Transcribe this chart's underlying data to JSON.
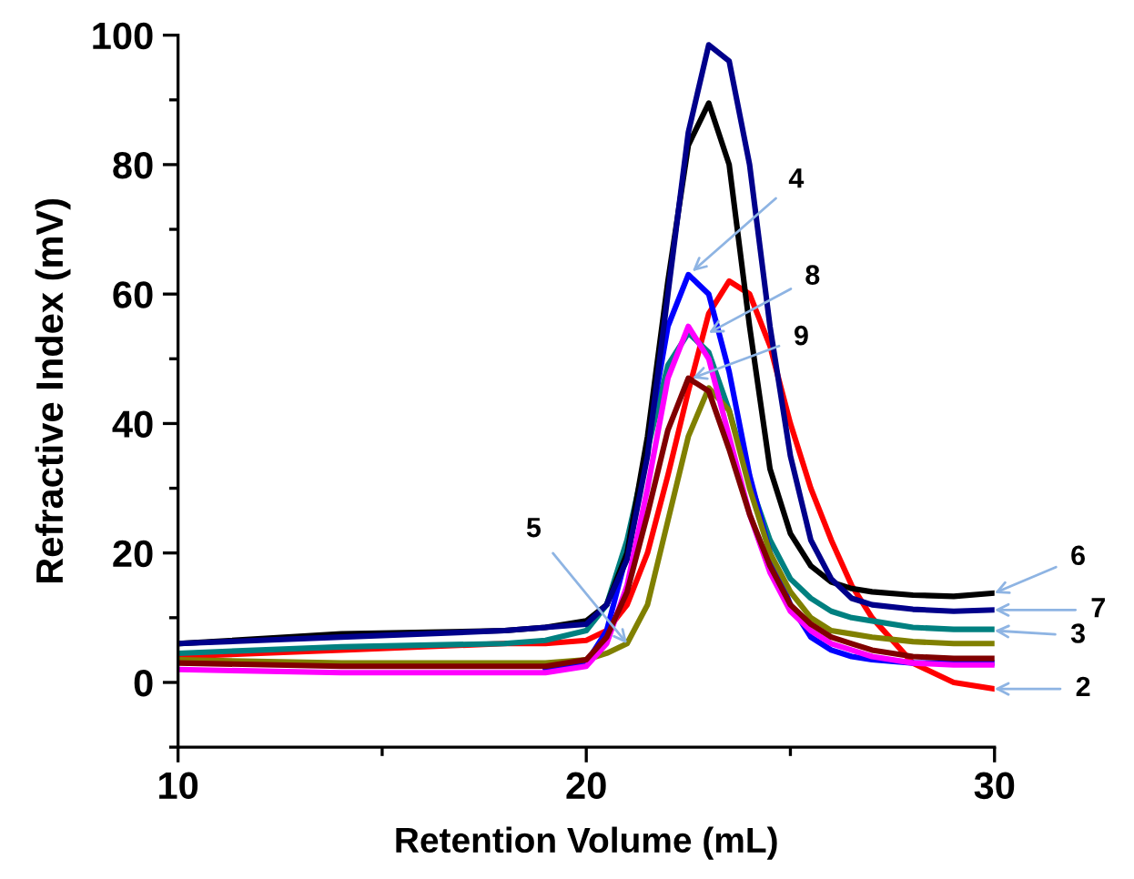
{
  "chart_data": {
    "type": "line",
    "xlabel": "Retention Volume (mL)",
    "ylabel": "Refractive Index (mV)",
    "x": [
      10,
      14,
      18,
      19,
      20,
      20.5,
      21,
      21.5,
      22,
      22.5,
      23,
      23.5,
      24,
      24.5,
      25,
      25.5,
      26,
      26.5,
      27,
      28,
      29,
      30
    ],
    "xlim": [
      10,
      30
    ],
    "ylim": [
      -10,
      100
    ],
    "xticks": [
      10,
      {
        "value": 15,
        "label": null
      },
      20,
      {
        "value": 25,
        "label": null
      },
      30
    ],
    "yticks": [
      {
        "value": -10,
        "label": null
      },
      0,
      {
        "value": 10,
        "label": null
      },
      20,
      {
        "value": 30,
        "label": null
      },
      40,
      {
        "value": 50,
        "label": null
      },
      60,
      {
        "value": 70,
        "label": null
      },
      80,
      {
        "value": 90,
        "label": null
      },
      100
    ],
    "grid": false,
    "legend": false,
    "marker": "none",
    "line_style": "solid",
    "series": [
      {
        "color": "#ff0000",
        "values": [
          4,
          5,
          6,
          6,
          6.5,
          8,
          12,
          20,
          32,
          45,
          57,
          62,
          60,
          52,
          40,
          30,
          22,
          15,
          10,
          3,
          0,
          -1
        ]
      },
      {
        "color": "#008080",
        "values": [
          4.5,
          5.5,
          6,
          6.5,
          8,
          12,
          22,
          36,
          49,
          54,
          51,
          42,
          31,
          22,
          16,
          13,
          11,
          10,
          9.5,
          8.5,
          8.2,
          8.2
        ]
      },
      {
        "color": "#0000ff",
        "values": [
          null,
          null,
          null,
          2,
          3,
          8,
          20,
          37,
          55,
          63,
          60,
          48,
          32,
          20,
          12,
          7,
          5,
          4,
          3.5,
          3,
          3,
          3
        ]
      },
      {
        "color": "#808000",
        "values": [
          3.5,
          3,
          3,
          3,
          3.5,
          4.5,
          6,
          12,
          25,
          38,
          45.5,
          42,
          30,
          20,
          14,
          10,
          8,
          7.5,
          7,
          6.3,
          6,
          6
        ]
      },
      {
        "color": "#000000",
        "values": [
          6,
          7.5,
          8,
          8.5,
          9.5,
          12,
          20,
          38,
          62,
          83,
          89.5,
          80,
          55,
          33,
          23,
          18,
          15.5,
          14.5,
          14,
          13.5,
          13.3,
          13.8
        ]
      },
      {
        "color": "#00008b",
        "values": [
          6,
          7,
          8,
          8.5,
          9,
          12,
          19,
          35,
          60,
          85,
          98.5,
          96,
          80,
          55,
          35,
          22,
          16,
          13,
          12,
          11.3,
          11,
          11.2
        ]
      },
      {
        "color": "#ff00ff",
        "values": [
          2,
          1.5,
          1.5,
          1.5,
          2.5,
          6,
          15,
          30,
          47,
          55,
          50,
          38,
          26,
          17,
          11,
          8,
          6,
          5,
          4,
          3,
          2.7,
          2.7
        ]
      },
      {
        "color": "#800000",
        "values": [
          3,
          2.5,
          2.5,
          2.5,
          3.5,
          7,
          14,
          26,
          39,
          47,
          45,
          36,
          26,
          18,
          12,
          9,
          7,
          6,
          5,
          4,
          3.7,
          3.7
        ]
      }
    ],
    "annotations": [
      {
        "text": "2",
        "x": 30,
        "y": -1
      },
      {
        "text": "3",
        "x": 30,
        "y": 8
      },
      {
        "text": "4",
        "x": 22.6,
        "y": 63.5
      },
      {
        "text": "5",
        "x": 21,
        "y": 6
      },
      {
        "text": "6",
        "x": 30,
        "y": 13.8
      },
      {
        "text": "7",
        "x": 30,
        "y": 11.2
      },
      {
        "text": "8",
        "x": 23,
        "y": 54
      },
      {
        "text": "9",
        "x": 22.6,
        "y": 47
      }
    ]
  }
}
